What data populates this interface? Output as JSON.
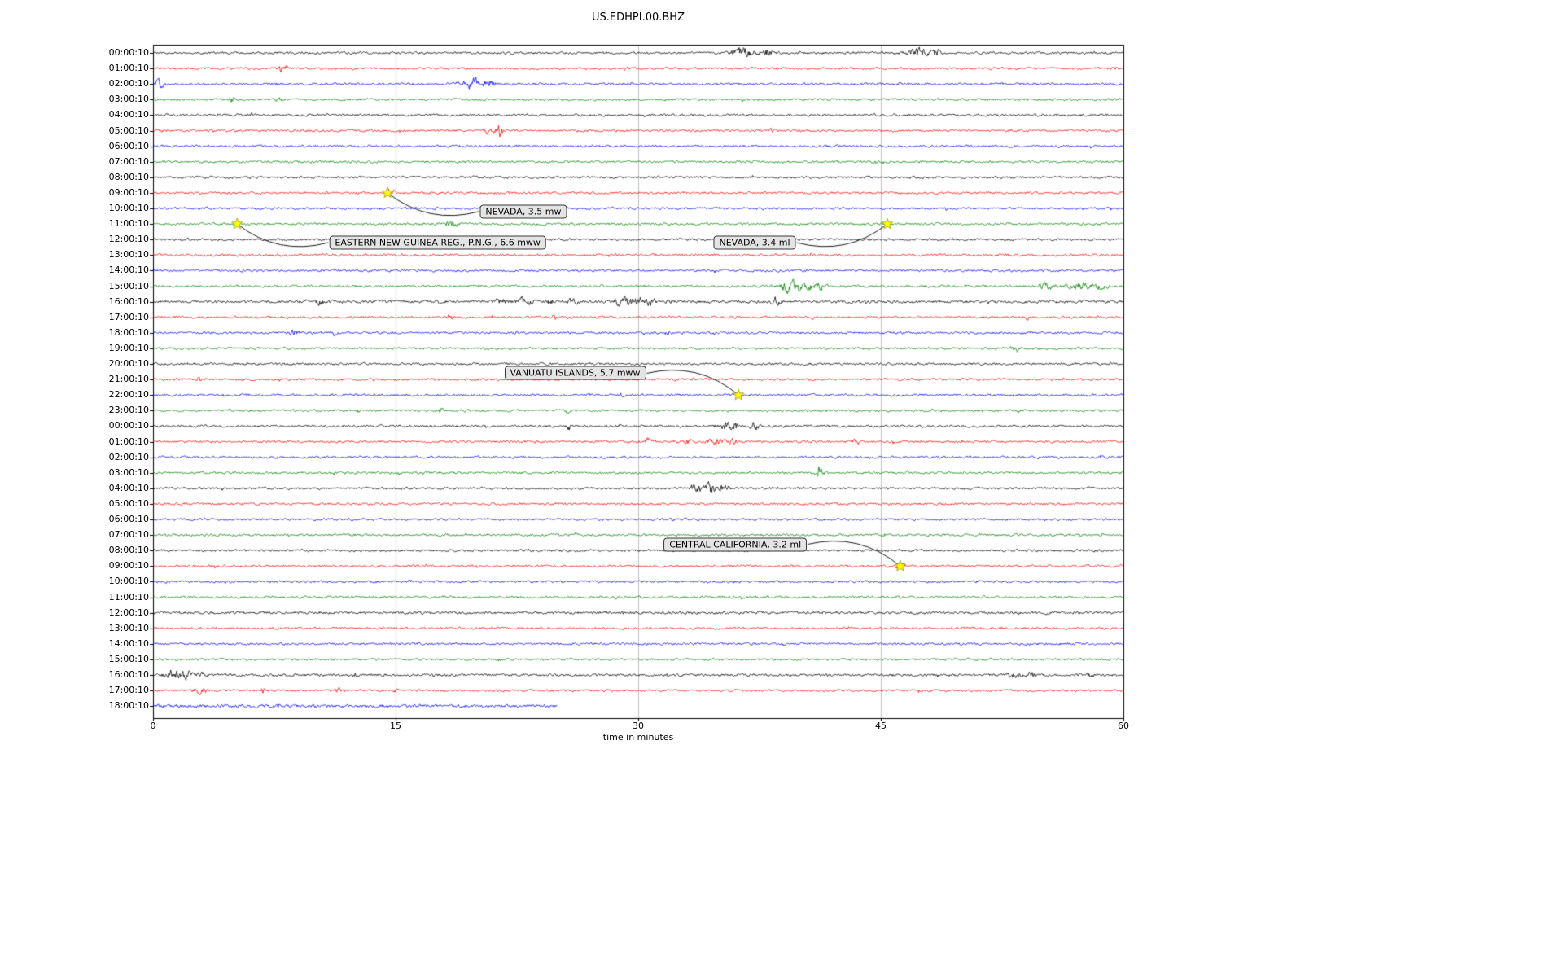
{
  "title": "US.EDHPI.00.BHZ",
  "chart_data": {
    "type": "line",
    "subtype": "seismogram-helicorder-dayplot",
    "xlabel": "time in minutes",
    "xlim": [
      0,
      60
    ],
    "x_ticks": [
      "0",
      "15",
      "30",
      "45",
      "60"
    ],
    "grid": true,
    "interval_minutes": 60,
    "color_cycle": [
      "#000000",
      "#ff0000",
      "#0000ff",
      "#008000"
    ],
    "event_marker": {
      "shape": "star",
      "color": "#ffff00"
    },
    "traces": [
      {
        "label": "00:00:10",
        "bursts": [
          [
            36.5,
            4.5,
            0.7
          ],
          [
            37.9,
            3,
            0.35
          ],
          [
            47.2,
            4.5,
            0.6
          ],
          [
            48.4,
            3,
            0.3
          ]
        ]
      },
      {
        "label": "01:00:10",
        "bursts": [
          [
            8.0,
            3.5,
            0.25
          ],
          [
            59.6,
            2.5,
            0.2
          ]
        ]
      },
      {
        "label": "02:00:10",
        "bursts": [
          [
            0.4,
            3.5,
            0.3
          ],
          [
            19.9,
            5.5,
            0.5
          ],
          [
            20.9,
            3.5,
            0.3
          ]
        ]
      },
      {
        "label": "03:00:10",
        "bursts": [
          [
            4.9,
            3.5,
            0.15
          ],
          [
            7.8,
            1.8,
            0.15
          ]
        ]
      },
      {
        "label": "04:00:10",
        "bursts": []
      },
      {
        "label": "05:00:10",
        "bursts": [
          [
            20.7,
            2.5,
            0.3
          ],
          [
            21.4,
            7,
            0.2
          ],
          [
            38.2,
            1.8,
            0.15
          ]
        ]
      },
      {
        "label": "06:00:10",
        "bursts": []
      },
      {
        "label": "07:00:10",
        "bursts": []
      },
      {
        "label": "08:00:10",
        "bursts": []
      },
      {
        "label": "09:00:10",
        "bursts": [
          [
            14.6,
            1.8,
            0.3
          ]
        ]
      },
      {
        "label": "10:00:10",
        "bursts": []
      },
      {
        "label": "11:00:10",
        "bursts": [
          [
            18.5,
            2.2,
            0.4
          ]
        ]
      },
      {
        "label": "12:00:10",
        "bursts": []
      },
      {
        "label": "13:00:10",
        "bursts": []
      },
      {
        "label": "14:00:10",
        "bursts": []
      },
      {
        "label": "15:00:10",
        "bursts": [
          [
            39.3,
            5,
            0.6
          ],
          [
            40.3,
            4,
            0.5
          ],
          [
            41.3,
            2.5,
            0.4
          ],
          [
            55.3,
            2.5,
            0.5
          ],
          [
            57.3,
            3,
            0.7
          ],
          [
            58.6,
            2.5,
            0.4
          ]
        ]
      },
      {
        "label": "16:00:10",
        "amp": 1.3,
        "bursts": [
          [
            10.3,
            3.5,
            0.2
          ],
          [
            17.8,
            2,
            0.2
          ],
          [
            21.5,
            2.8,
            0.4
          ],
          [
            23,
            3.5,
            0.5
          ],
          [
            24.5,
            2.8,
            0.3
          ],
          [
            26,
            2.2,
            0.3
          ],
          [
            29,
            5,
            0.45
          ],
          [
            29.9,
            4.5,
            0.35
          ],
          [
            30.8,
            3.5,
            0.3
          ],
          [
            32,
            2,
            0.2
          ],
          [
            38.5,
            3.5,
            0.3
          ]
        ]
      },
      {
        "label": "17:00:10",
        "bursts": [
          [
            18.4,
            3.5,
            0.15
          ],
          [
            24.8,
            3.5,
            0.15
          ],
          [
            54,
            1.8,
            0.15
          ]
        ]
      },
      {
        "label": "18:00:10",
        "bursts": [
          [
            8.7,
            2.5,
            0.25
          ],
          [
            11.3,
            2.2,
            0.15
          ],
          [
            31.8,
            1.8,
            0.2
          ]
        ]
      },
      {
        "label": "19:00:10",
        "bursts": [
          [
            53.3,
            2.5,
            0.25
          ]
        ]
      },
      {
        "label": "20:00:10",
        "bursts": []
      },
      {
        "label": "21:00:10",
        "bursts": [
          [
            2.8,
            2.2,
            0.15
          ]
        ]
      },
      {
        "label": "22:00:10",
        "bursts": [
          [
            29,
            1.8,
            0.15
          ],
          [
            36.2,
            1.8,
            0.25
          ]
        ]
      },
      {
        "label": "23:00:10",
        "bursts": [
          [
            17.8,
            2.2,
            0.15
          ],
          [
            25.6,
            2.8,
            0.12
          ]
        ]
      },
      {
        "label": "00:00:10",
        "bursts": [
          [
            25.7,
            3.5,
            0.12
          ],
          [
            35.4,
            3,
            0.5
          ],
          [
            36,
            3.5,
            0.3
          ],
          [
            37.2,
            3.2,
            0.25
          ]
        ]
      },
      {
        "label": "01:00:10",
        "bursts": [
          [
            30.7,
            2.5,
            0.35
          ],
          [
            33.1,
            2,
            0.2
          ],
          [
            34.9,
            3,
            0.5
          ],
          [
            35.9,
            3,
            0.2
          ],
          [
            43.4,
            2.5,
            0.3
          ]
        ]
      },
      {
        "label": "02:00:10",
        "bursts": []
      },
      {
        "label": "03:00:10",
        "bursts": [
          [
            41.2,
            3,
            0.25
          ]
        ]
      },
      {
        "label": "04:00:10",
        "bursts": [
          [
            33.6,
            4.5,
            0.35
          ],
          [
            34.5,
            5.5,
            0.3
          ],
          [
            35.3,
            3.5,
            0.3
          ]
        ]
      },
      {
        "label": "05:00:10",
        "bursts": []
      },
      {
        "label": "06:00:10",
        "bursts": []
      },
      {
        "label": "07:00:10",
        "bursts": []
      },
      {
        "label": "08:00:10",
        "bursts": []
      },
      {
        "label": "09:00:10",
        "bursts": [
          [
            46.2,
            1.8,
            0.3
          ]
        ]
      },
      {
        "label": "10:00:10",
        "bursts": []
      },
      {
        "label": "11:00:10",
        "bursts": []
      },
      {
        "label": "12:00:10",
        "amp": 1.25,
        "bursts": []
      },
      {
        "label": "13:00:10",
        "bursts": []
      },
      {
        "label": "14:00:10",
        "bursts": []
      },
      {
        "label": "15:00:10",
        "bursts": []
      },
      {
        "label": "16:00:10",
        "amp": 1.25,
        "bursts": [
          [
            1.2,
            4.5,
            0.45
          ],
          [
            2.1,
            4,
            0.35
          ],
          [
            2.9,
            2.5,
            0.3
          ],
          [
            12.5,
            2.2,
            0.15
          ],
          [
            53.3,
            3,
            0.4
          ],
          [
            54.3,
            2.5,
            0.3
          ],
          [
            58,
            2.5,
            0.15
          ]
        ]
      },
      {
        "label": "17:00:10",
        "bursts": [
          [
            2.9,
            2.5,
            0.4
          ],
          [
            6.8,
            1.8,
            0.15
          ],
          [
            11.5,
            2.5,
            0.25
          ],
          [
            15,
            2,
            0.15
          ]
        ]
      },
      {
        "label": "18:00:10",
        "end": 25,
        "amp": 1.5,
        "bursts": []
      }
    ],
    "events": [
      {
        "label": "NEVADA, 3.5 mw",
        "trace_index": 9,
        "minute": 14.5,
        "label_minute": 22.9,
        "label_row": 10.2,
        "bow": -1
      },
      {
        "label": "EASTERN NEW GUINEA REG., P.N.G., 6.6 mww",
        "trace_index": 11,
        "minute": 5.2,
        "label_minute": 17.6,
        "label_row": 12.2,
        "bow": -1
      },
      {
        "label": "NEVADA, 3.4 ml",
        "trace_index": 11,
        "minute": 45.4,
        "label_minute": 37.2,
        "label_row": 12.2,
        "bow": 1
      },
      {
        "label": "VANUATU ISLANDS, 5.7 mww",
        "trace_index": 22,
        "minute": 36.2,
        "label_minute": 26.1,
        "label_row": 20.6,
        "bow": -1
      },
      {
        "label": "CENTRAL CALIFORNIA, 3.2 ml",
        "trace_index": 33,
        "minute": 46.2,
        "label_minute": 36.0,
        "label_row": 31.6,
        "bow": -1
      }
    ]
  }
}
